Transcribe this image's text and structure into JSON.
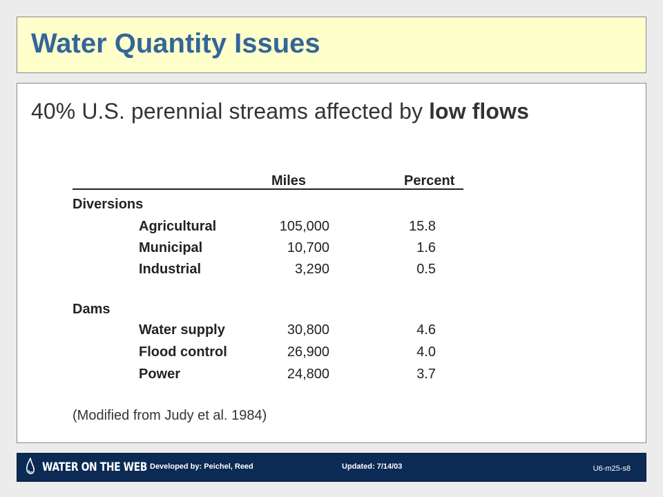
{
  "slide": {
    "title": "Water Quantity Issues",
    "headline_pre": "40% U.S. perennial streams affected by ",
    "headline_bold": "low flows"
  },
  "table": {
    "col_miles": "Miles",
    "col_percent": "Percent",
    "groups": [
      {
        "name": "Diversions",
        "rows": [
          {
            "label": "Agricultural",
            "miles": "105,000",
            "percent": "15.8"
          },
          {
            "label": "Municipal",
            "miles": "10,700",
            "percent": "1.6"
          },
          {
            "label": "Industrial",
            "miles": "3,290",
            "percent": "0.5"
          }
        ]
      },
      {
        "name": "Dams",
        "rows": [
          {
            "label": "Water supply",
            "miles": "30,800",
            "percent": "4.6"
          },
          {
            "label": "Flood control",
            "miles": "26,900",
            "percent": "4.0"
          },
          {
            "label": "Power",
            "miles": "24,800",
            "percent": "3.7"
          }
        ]
      }
    ],
    "source_note": "(Modified from Judy et al. 1984)"
  },
  "footer": {
    "logo_text": "WATER ON THE WEB",
    "developed_by": "Developed by: Peichel, Reed",
    "updated": "Updated: 7/14/03",
    "slide_code": "U6-m25-s8"
  },
  "colors": {
    "title_bg": "#ffffcc",
    "title_text": "#336699",
    "footer_bg": "#0b2a54"
  }
}
